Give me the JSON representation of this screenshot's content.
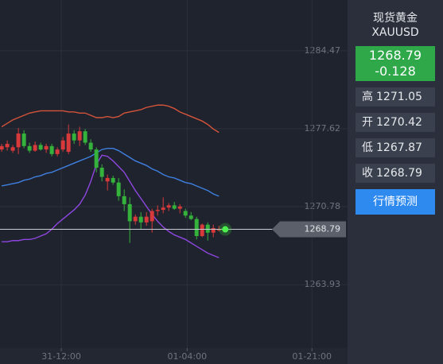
{
  "chart_data": {
    "type": "candlestick",
    "x": [
      0,
      1,
      2,
      3,
      4,
      5,
      6,
      7,
      8,
      9,
      10,
      11,
      12,
      13,
      14,
      15,
      16,
      17,
      18,
      19,
      20,
      21,
      22,
      23,
      24,
      25,
      26,
      27,
      28,
      29,
      30,
      31,
      32,
      33,
      34,
      35,
      36,
      37,
      38,
      39
    ],
    "open": [
      1275.8,
      1276.0,
      1275.7,
      1276.0,
      1277.2,
      1276.1,
      1275.7,
      1276.2,
      1275.8,
      1276.1,
      1275.4,
      1275.8,
      1275.6,
      1277.2,
      1276.6,
      1277.4,
      1276.4,
      1275.8,
      1274.2,
      1273.0,
      1273.3,
      1272.9,
      1271.7,
      1271.0,
      1269.5,
      1269.9,
      1269.4,
      1269.5,
      1270.4,
      1270.5,
      1270.7,
      1270.9,
      1270.6,
      1270.4,
      1270.0,
      1269.7,
      1268.2,
      1269.2,
      1268.5,
      1268.7
    ],
    "high": [
      1276.3,
      1276.6,
      1276.2,
      1277.7,
      1277.5,
      1276.4,
      1276.5,
      1276.4,
      1276.3,
      1276.3,
      1276.0,
      1276.9,
      1278.0,
      1277.5,
      1277.8,
      1277.6,
      1276.7,
      1276.0,
      1274.5,
      1273.6,
      1273.5,
      1273.3,
      1272.3,
      1271.6,
      1270.1,
      1270.3,
      1270.3,
      1270.6,
      1270.9,
      1271.6,
      1271.1,
      1271.2,
      1271.0,
      1270.6,
      1270.3,
      1269.9,
      1269.3,
      1269.4,
      1269.2,
      1269.1
    ],
    "low": [
      1275.6,
      1275.7,
      1275.5,
      1275.4,
      1275.9,
      1275.5,
      1275.6,
      1275.7,
      1275.5,
      1275.2,
      1275.2,
      1275.6,
      1275.4,
      1276.3,
      1276.1,
      1276.2,
      1275.6,
      1273.8,
      1273.0,
      1272.2,
      1272.7,
      1271.3,
      1270.4,
      1267.6,
      1269.2,
      1268.8,
      1269.1,
      1268.5,
      1270.0,
      1270.2,
      1270.4,
      1270.5,
      1270.2,
      1269.8,
      1269.6,
      1267.9,
      1268.1,
      1267.8,
      1268.1,
      1268.6
    ],
    "close": [
      1276.1,
      1276.3,
      1276.0,
      1277.2,
      1276.1,
      1275.7,
      1276.2,
      1275.8,
      1276.1,
      1275.4,
      1275.8,
      1276.6,
      1277.2,
      1276.6,
      1277.4,
      1276.4,
      1275.8,
      1274.2,
      1273.4,
      1273.3,
      1272.9,
      1271.7,
      1271.0,
      1269.5,
      1269.9,
      1269.4,
      1269.9,
      1270.4,
      1270.5,
      1270.7,
      1270.9,
      1270.6,
      1270.8,
      1270.0,
      1269.7,
      1268.2,
      1269.2,
      1268.5,
      1268.9,
      1268.79
    ],
    "up_color": "#d83a3c",
    "down_color": "#35b23c",
    "series": [
      {
        "color": "#d4533b",
        "values": [
          1277.8,
          1278.1,
          1278.4,
          1278.6,
          1278.8,
          1279.0,
          1279.1,
          1279.2,
          1279.2,
          1279.2,
          1279.2,
          1279.2,
          1279.1,
          1279.1,
          1279.0,
          1279.0,
          1278.8,
          1278.6,
          1278.6,
          1278.7,
          1278.6,
          1278.7,
          1279.0,
          1279.1,
          1279.2,
          1279.3,
          1279.5,
          1279.6,
          1279.7,
          1279.7,
          1279.6,
          1279.4,
          1279.1,
          1278.9,
          1278.7,
          1278.5,
          1278.3,
          1278.0,
          1277.6,
          1277.3
        ]
      },
      {
        "color": "#3f7fe0",
        "values": [
          1272.6,
          1272.7,
          1272.8,
          1272.9,
          1273.1,
          1273.2,
          1273.4,
          1273.5,
          1273.7,
          1273.8,
          1274.0,
          1274.2,
          1274.4,
          1274.6,
          1274.8,
          1275.0,
          1275.2,
          1275.5,
          1275.8,
          1275.9,
          1275.9,
          1275.7,
          1275.4,
          1275.1,
          1274.8,
          1274.6,
          1274.4,
          1274.1,
          1273.9,
          1273.6,
          1273.4,
          1273.3,
          1273.1,
          1272.9,
          1272.8,
          1272.6,
          1272.4,
          1272.2,
          1271.9,
          1271.7
        ]
      },
      {
        "color": "#8e46e0",
        "values": [
          1267.7,
          1267.7,
          1267.8,
          1267.8,
          1267.9,
          1267.9,
          1268.0,
          1268.2,
          1268.4,
          1268.8,
          1269.3,
          1269.7,
          1270.1,
          1270.5,
          1271.0,
          1271.8,
          1273.0,
          1274.5,
          1275.3,
          1275.2,
          1274.8,
          1274.3,
          1273.8,
          1273.0,
          1272.2,
          1271.5,
          1270.8,
          1270.1,
          1269.5,
          1269.0,
          1268.6,
          1268.3,
          1268.1,
          1267.9,
          1267.6,
          1267.3,
          1267.0,
          1266.7,
          1266.5,
          1266.3
        ]
      }
    ],
    "last_price": 1268.79,
    "xlim": [
      -0.3,
      62.1
    ],
    "xticks": [
      {
        "value": 10.7,
        "label": "31-12:00"
      },
      {
        "value": 33.3,
        "label": "01-04:00"
      },
      {
        "value": 55.7,
        "label": "01-21:00"
      }
    ],
    "ylim": [
      1258.36,
      1288.93
    ],
    "yticks": [
      1263.93,
      1270.78,
      1277.62,
      1284.47
    ],
    "grid": true
  },
  "panel": {
    "name": "现货黄金",
    "symbol": "XAUUSD",
    "price": "1268.79",
    "change": "-0.128",
    "stats": [
      {
        "label": "高",
        "value": "1271.05"
      },
      {
        "label": "开",
        "value": "1270.42"
      },
      {
        "label": "低",
        "value": "1267.87"
      },
      {
        "label": "收",
        "value": "1268.79"
      }
    ],
    "button": "行情预测"
  }
}
